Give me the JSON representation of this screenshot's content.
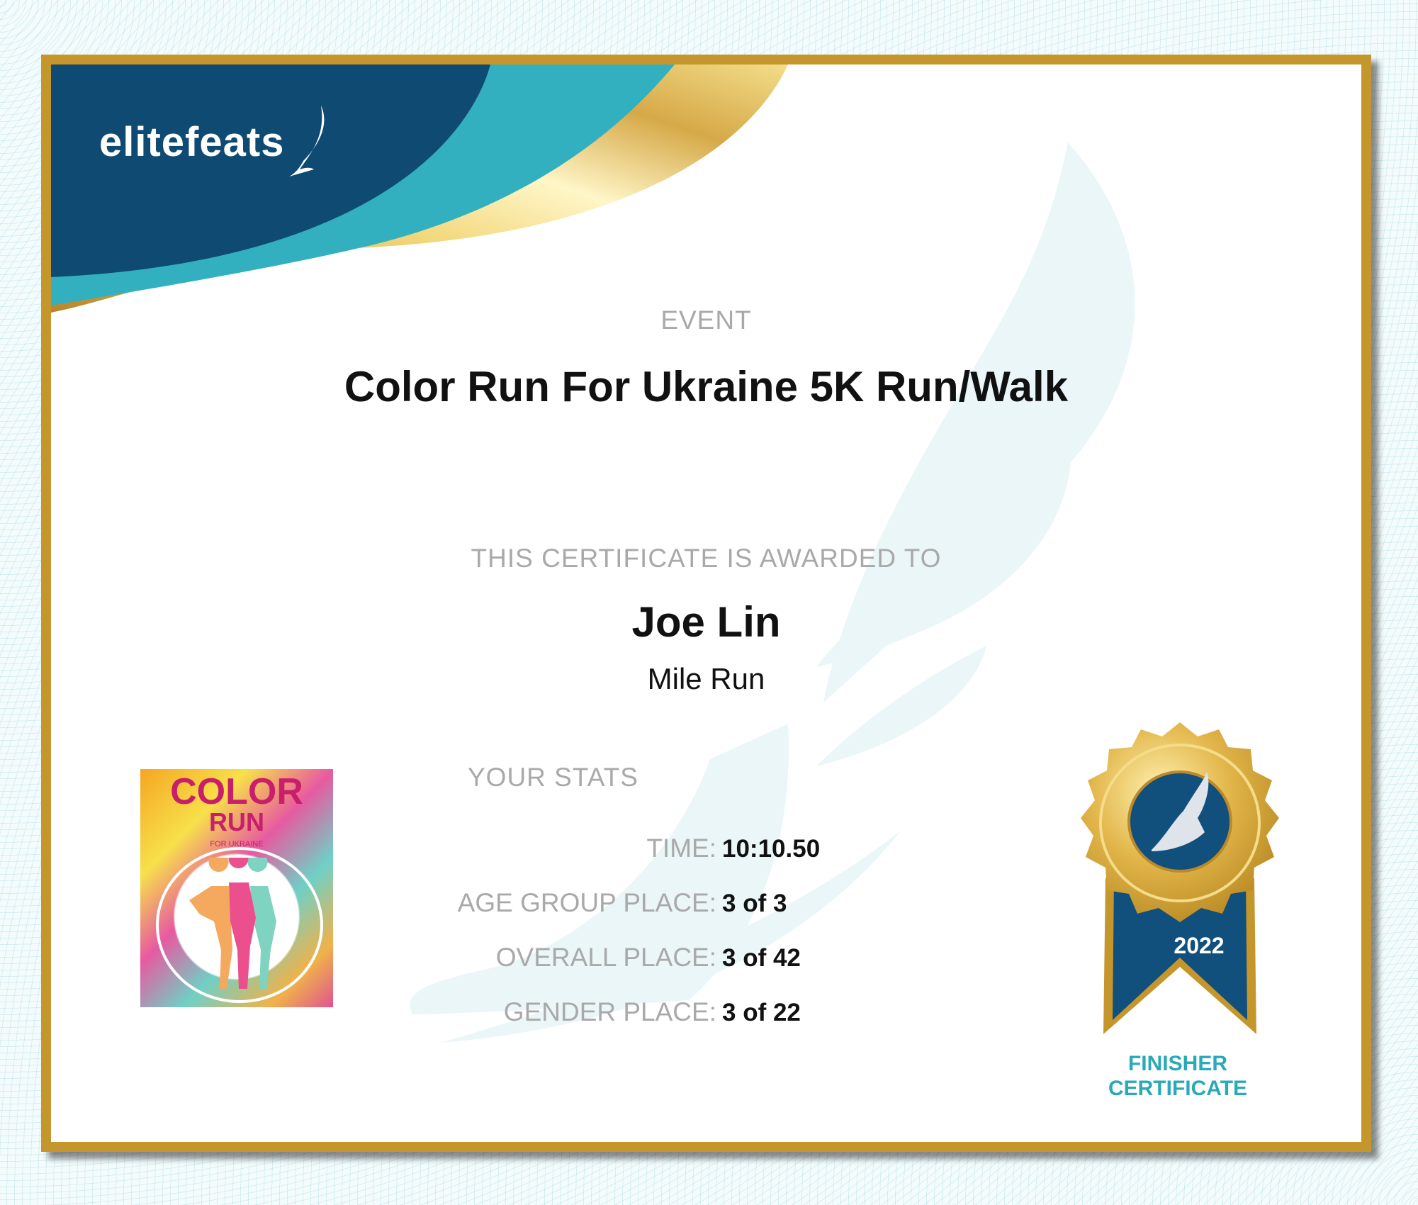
{
  "brand": {
    "logo_text": "elitefeats",
    "navy": "#0f4a73",
    "teal": "#32b0c0",
    "gold": "#c4962c"
  },
  "event": {
    "label": "EVENT",
    "title": "Color Run For Ukraine 5K Run/Walk"
  },
  "award": {
    "label": "THIS CERTIFICATE IS AWARDED TO",
    "name": "Joe Lin",
    "division": "Mile Run"
  },
  "stats": {
    "label": "YOUR STATS",
    "rows": [
      {
        "label": "TIME:",
        "value": "10:10.50"
      },
      {
        "label": "AGE GROUP PLACE:",
        "value": "3 of 3"
      },
      {
        "label": "OVERALL PLACE:",
        "value": "3 of 42"
      },
      {
        "label": "GENDER PLACE:",
        "value": "3 of 22"
      }
    ]
  },
  "poster": {
    "line1": "COLOR",
    "line2": "RUN",
    "line3": "FOR UKRAINE"
  },
  "medal": {
    "year": "2022",
    "line1": "FINISHER",
    "line2": "CERTIFICATE",
    "icon": "winged-foot-icon"
  }
}
